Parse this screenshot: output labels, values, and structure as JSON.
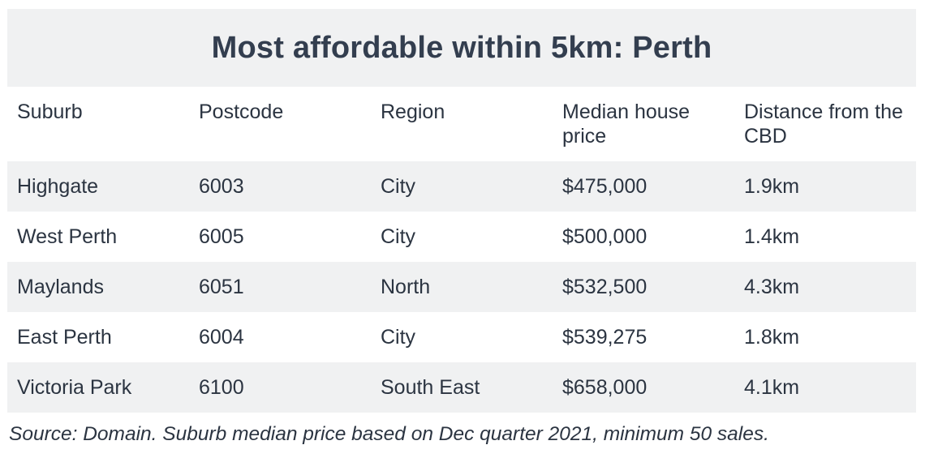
{
  "title": "Most affordable within 5km: Perth",
  "columns": [
    "Suburb",
    "Postcode",
    "Region",
    "Median house price",
    "Distance from the CBD"
  ],
  "rows": [
    [
      "Highgate",
      "6003",
      "City",
      "$475,000",
      "1.9km"
    ],
    [
      "West Perth",
      "6005",
      "City",
      "$500,000",
      "1.4km"
    ],
    [
      "Maylands",
      "6051",
      "North",
      "$532,500",
      "4.3km"
    ],
    [
      "East Perth",
      "6004",
      "City",
      "$539,275",
      "1.8km"
    ],
    [
      "Victoria Park",
      "6100",
      "South East",
      "$658,000",
      "4.1km"
    ]
  ],
  "source": "Source: Domain. Suburb median price based on Dec quarter 2021, minimum 50 sales.",
  "colors": {
    "stripe": "#f0f1f2",
    "text": "#2b3441",
    "title": "#333e4f"
  }
}
